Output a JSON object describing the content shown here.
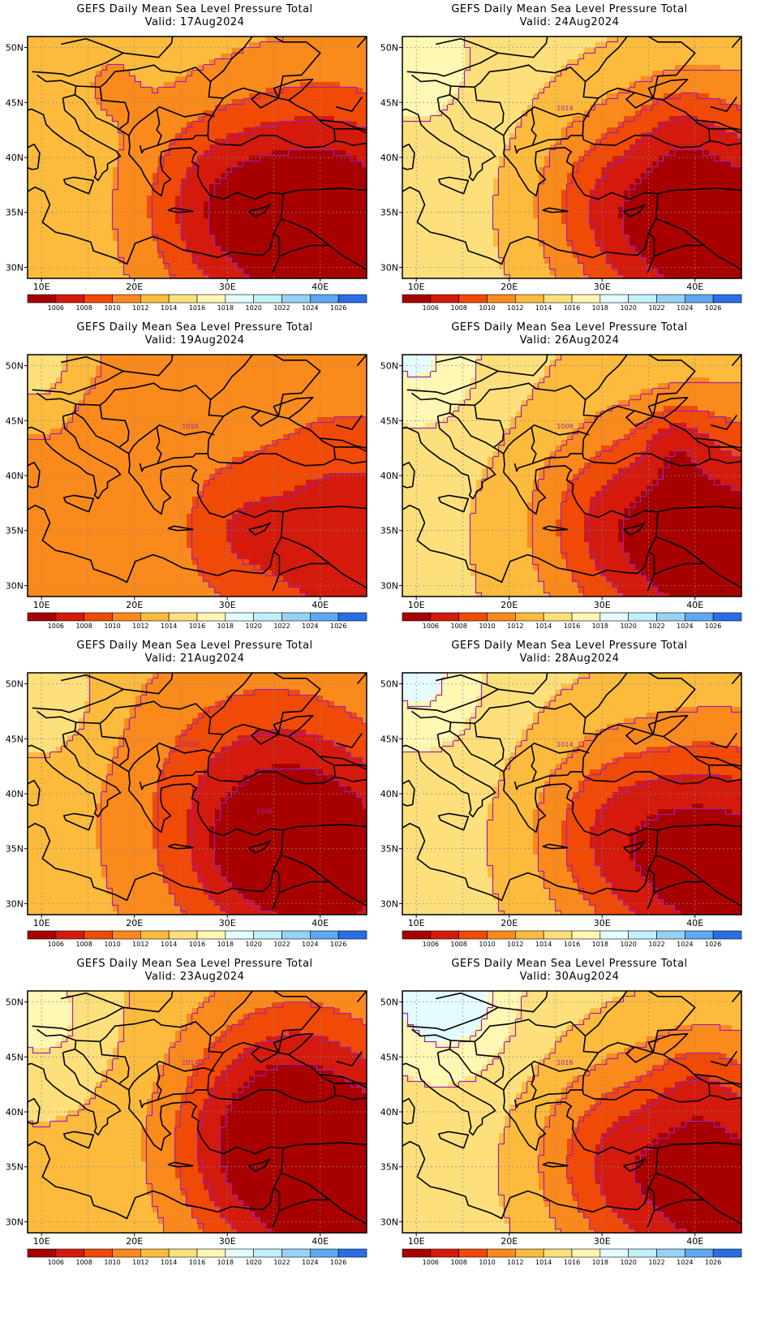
{
  "colors": {
    "levels": [
      {
        "label": "",
        "color": "#a80000"
      },
      {
        "label": "1006",
        "color": "#d41a0c"
      },
      {
        "label": "1008",
        "color": "#f04a06"
      },
      {
        "label": "1010",
        "color": "#fa8a1c"
      },
      {
        "label": "1012",
        "color": "#fcbb3c"
      },
      {
        "label": "1014",
        "color": "#fde07c"
      },
      {
        "label": "1016",
        "color": "#fff7b4"
      },
      {
        "label": "1018",
        "color": "#e4fcff"
      },
      {
        "label": "1020",
        "color": "#c0f0fa"
      },
      {
        "label": "1022",
        "color": "#96d2f6"
      },
      {
        "label": "1024",
        "color": "#5ea8f0"
      },
      {
        "label": "1026",
        "color": "#2a6ee6"
      }
    ],
    "contour": "#a020b0",
    "border": "#000000"
  },
  "axes": {
    "lat_labels": [
      "50N",
      "45N",
      "40N",
      "35N",
      "30N"
    ],
    "lon_labels": [
      "10E",
      "20E",
      "30E",
      "40E"
    ]
  },
  "panels": [
    {
      "title": "GEFS Daily Mean Sea Level Pressure Total",
      "valid": "Valid: 17Aug2024",
      "contour_labels": [],
      "field": {
        "base": 1013.2,
        "centers": [
          [
            41,
            33,
            -10,
            9
          ],
          [
            28,
            36,
            -4,
            6
          ],
          [
            17,
            47,
            -1.2,
            3
          ]
        ]
      }
    },
    {
      "title": "GEFS Daily Mean Sea Level Pressure Total",
      "valid": "Valid: 24Aug2024",
      "contour_labels": [
        "1014"
      ],
      "field": {
        "base": 1014.8,
        "centers": [
          [
            43,
            33,
            -11,
            9
          ],
          [
            30,
            36,
            -4,
            6
          ],
          [
            10,
            49,
            2.2,
            5
          ],
          [
            38,
            43,
            -1.5,
            3
          ]
        ]
      }
    },
    {
      "title": "GEFS Daily Mean Sea Level Pressure Total",
      "valid": "Valid: 19Aug2024",
      "contour_labels": [
        "1010"
      ],
      "field": {
        "base": 1011.3,
        "centers": [
          [
            43,
            34,
            -5,
            7
          ],
          [
            31,
            35,
            -2.5,
            4
          ],
          [
            9,
            51,
            4,
            4
          ],
          [
            17,
            45,
            -0.8,
            2.5
          ],
          [
            15,
            40,
            -0.8,
            1.5
          ]
        ]
      }
    },
    {
      "title": "GEFS Daily Mean Sea Level Pressure Total",
      "valid": "Valid: 26Aug2024",
      "contour_labels": [
        "1008"
      ],
      "field": {
        "base": 1014.3,
        "centers": [
          [
            43,
            33,
            -10,
            9
          ],
          [
            30,
            36,
            -4,
            6
          ],
          [
            10,
            51,
            4,
            5
          ],
          [
            38,
            43,
            -2.5,
            2.5
          ]
        ]
      }
    },
    {
      "title": "GEFS Daily Mean Sea Level Pressure Total",
      "valid": "Valid: 21Aug2024",
      "contour_labels": [
        "1010",
        "1008"
      ],
      "field": {
        "base": 1013.0,
        "centers": [
          [
            33,
            38,
            -6,
            9
          ],
          [
            43,
            33,
            -6,
            8
          ],
          [
            32,
            35,
            -2,
            3
          ],
          [
            10,
            49,
            3,
            4
          ]
        ]
      }
    },
    {
      "title": "GEFS Daily Mean Sea Level Pressure Total",
      "valid": "Valid: 28Aug2024",
      "contour_labels": [
        "1014"
      ],
      "field": {
        "base": 1014.6,
        "centers": [
          [
            43,
            33,
            -10,
            9
          ],
          [
            30,
            37,
            -4,
            6
          ],
          [
            10,
            51,
            4,
            5
          ]
        ]
      }
    },
    {
      "title": "GEFS Daily Mean Sea Level Pressure Total",
      "valid": "Valid: 23Aug2024",
      "contour_labels": [
        "1014"
      ],
      "field": {
        "base": 1013.6,
        "centers": [
          [
            43,
            33,
            -10,
            9
          ],
          [
            31,
            37,
            -4,
            6
          ],
          [
            36,
            44,
            -3,
            7
          ],
          [
            10,
            49,
            3,
            5
          ]
        ]
      }
    },
    {
      "title": "GEFS Daily Mean Sea Level Pressure Total",
      "valid": "Valid: 30Aug2024",
      "contour_labels": [
        "1016",
        "1014"
      ],
      "field": {
        "base": 1014.9,
        "centers": [
          [
            43,
            33,
            -10,
            9
          ],
          [
            30,
            36,
            -4,
            6
          ],
          [
            13,
            51,
            5,
            5
          ],
          [
            40,
            43,
            -1.5,
            3
          ]
        ]
      }
    }
  ]
}
